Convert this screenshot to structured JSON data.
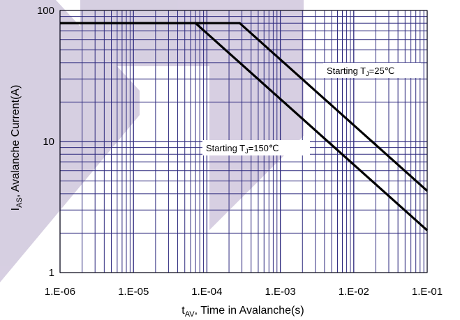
{
  "chart_data": {
    "type": "line",
    "x_scale": "log",
    "y_scale": "log",
    "xlim": [
      1e-06,
      0.1
    ],
    "ylim": [
      1,
      100
    ],
    "grid": true,
    "xlabel": {
      "main": "t",
      "sub": "AV",
      "rest": ", Time  in Avalanche(s)"
    },
    "ylabel": {
      "main": "I",
      "sub": "AS",
      "rest": ", Avalanche Current(A)"
    },
    "x_ticks": [
      {
        "value": 1e-06,
        "label": "1.E-06"
      },
      {
        "value": 1e-05,
        "label": "1.E-05"
      },
      {
        "value": 0.0001,
        "label": "1.E-04"
      },
      {
        "value": 0.001,
        "label": "1.E-03"
      },
      {
        "value": 0.01,
        "label": "1.E-02"
      },
      {
        "value": 0.1,
        "label": "1.E-01"
      }
    ],
    "y_ticks": [
      {
        "value": 1,
        "label": "1"
      },
      {
        "value": 10,
        "label": "10"
      },
      {
        "value": 100,
        "label": "100"
      }
    ],
    "series": [
      {
        "annotation": {
          "pre": "Starting T",
          "sub": "J",
          "post": "=25℃"
        },
        "color": "#000000",
        "points": [
          [
            1e-06,
            80
          ],
          [
            0.00028,
            80
          ],
          [
            0.1,
            4.2
          ]
        ]
      },
      {
        "annotation": {
          "pre": "Starting T",
          "sub": "J",
          "post": "=150℃"
        },
        "color": "#000000",
        "points": [
          [
            1e-06,
            80
          ],
          [
            7e-05,
            80
          ],
          [
            0.1,
            2.1
          ]
        ]
      }
    ],
    "colors": {
      "grid": "#2e2a7e",
      "curve": "#000000",
      "watermark": "#c9bfd8"
    }
  }
}
